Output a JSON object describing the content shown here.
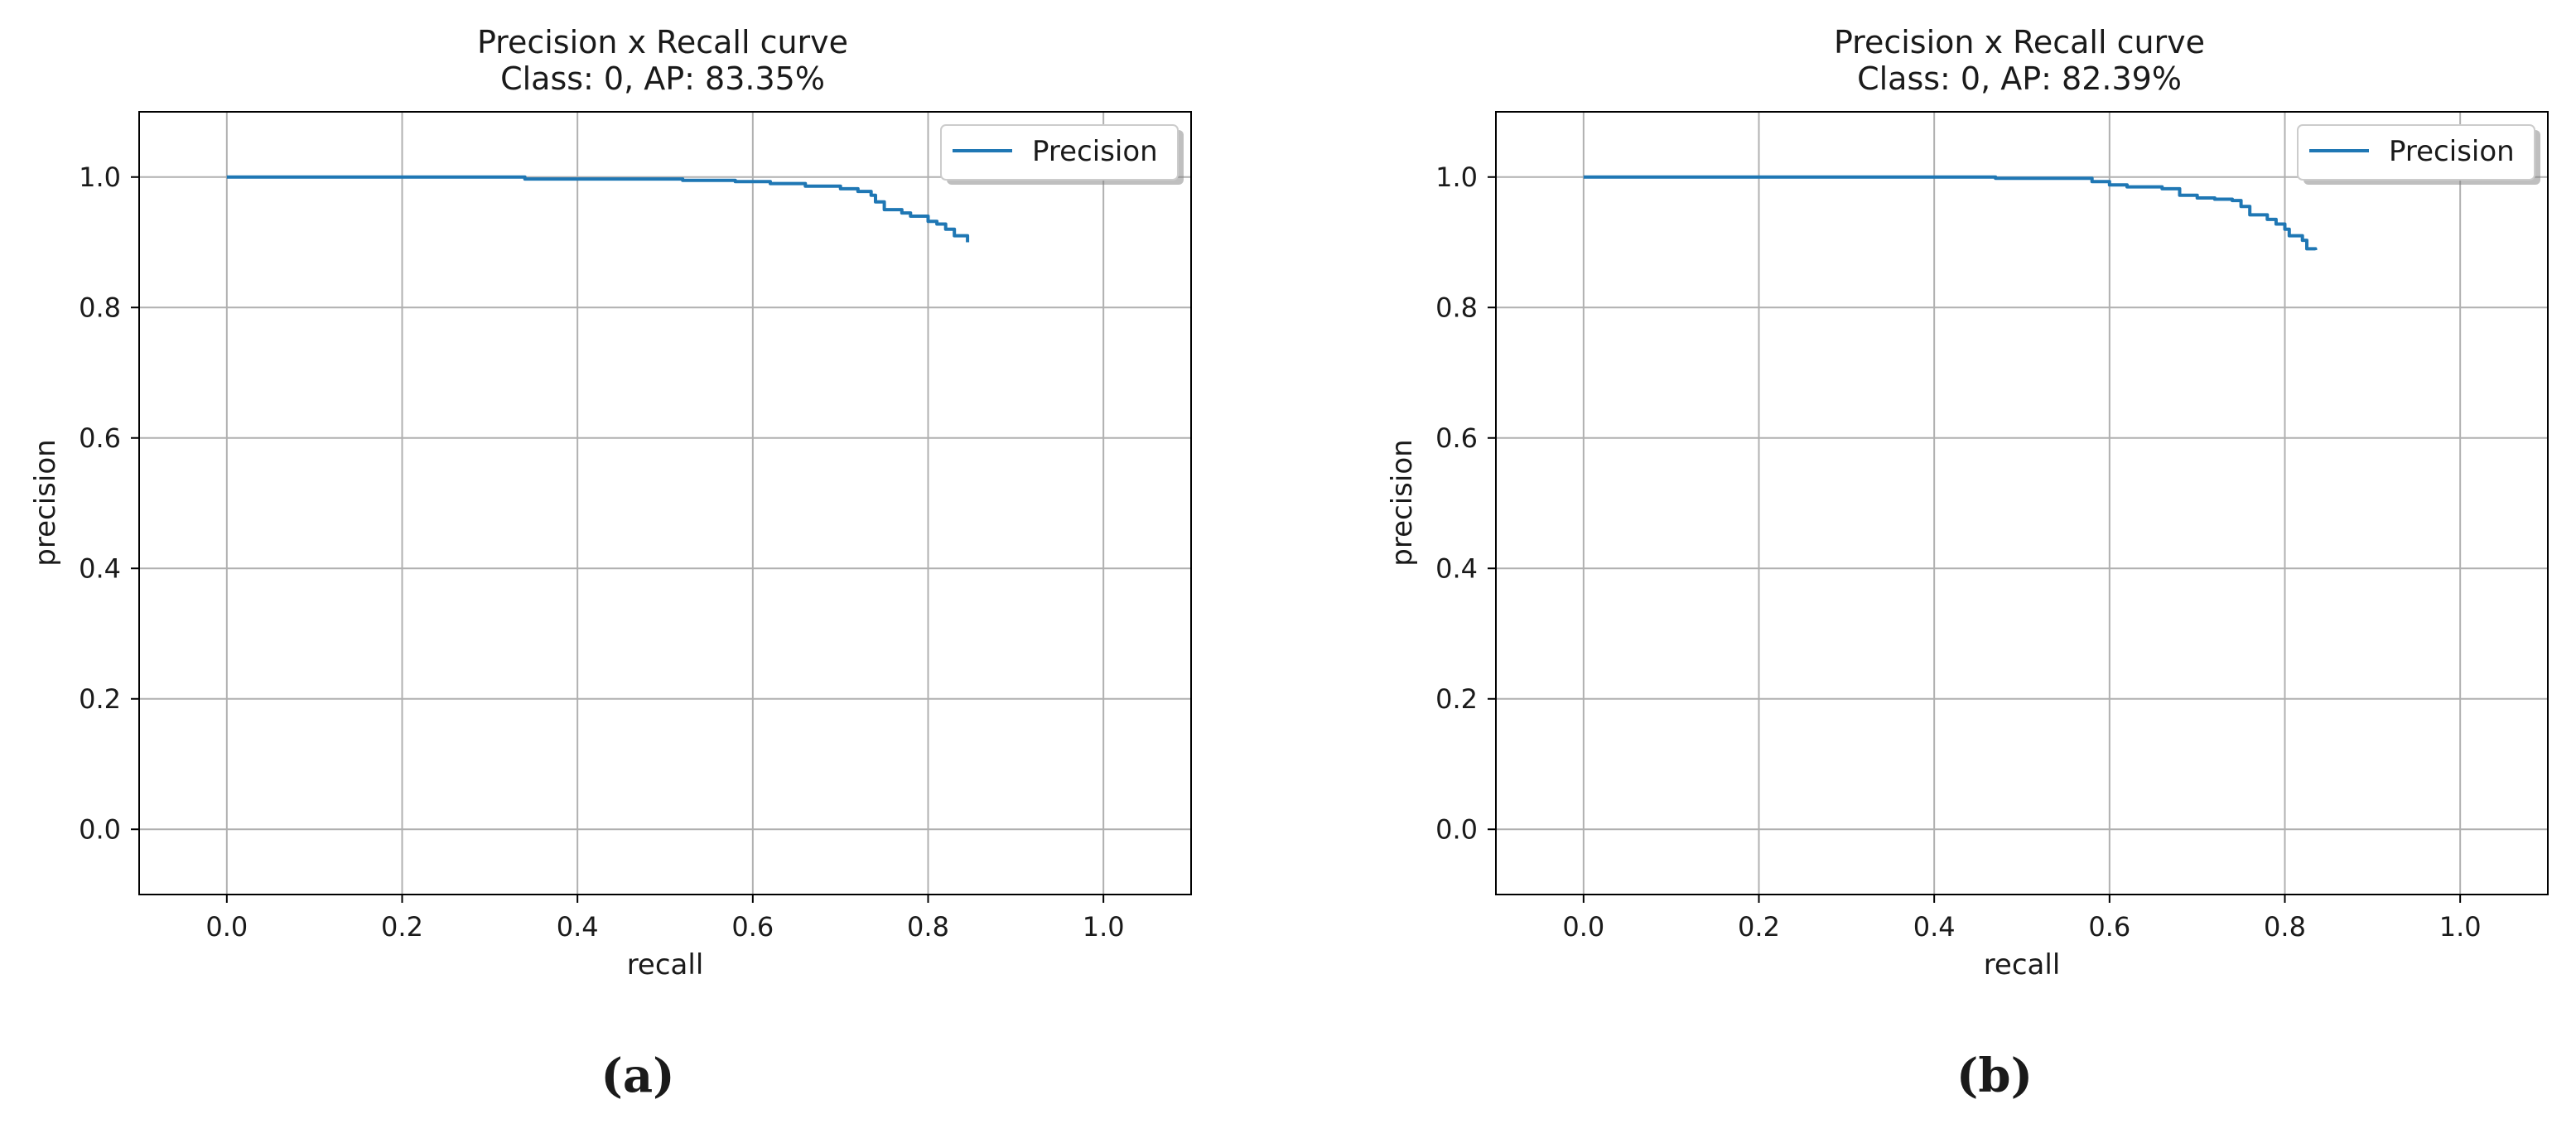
{
  "chart_data": [
    {
      "type": "line",
      "title": "Precision x Recall curve",
      "subtitle": "Class: 0, AP: 83.35%",
      "xlabel": "recall",
      "ylabel": "precision",
      "xlim": [
        -0.1,
        1.1
      ],
      "ylim": [
        -0.1,
        1.1
      ],
      "xticks": [
        "0.0",
        "0.2",
        "0.4",
        "0.6",
        "0.8",
        "1.0"
      ],
      "yticks": [
        "0.0",
        "0.2",
        "0.4",
        "0.6",
        "0.8",
        "1.0"
      ],
      "grid": true,
      "legend_position": "top-right",
      "series": [
        {
          "name": "Precision",
          "color": "#1f77b4",
          "x": [
            0.0,
            0.335,
            0.34,
            0.5,
            0.52,
            0.58,
            0.62,
            0.66,
            0.7,
            0.72,
            0.735,
            0.74,
            0.75,
            0.77,
            0.78,
            0.8,
            0.81,
            0.82,
            0.83,
            0.845
          ],
          "y": [
            1.0,
            1.0,
            0.997,
            0.997,
            0.995,
            0.993,
            0.99,
            0.986,
            0.982,
            0.978,
            0.972,
            0.962,
            0.95,
            0.945,
            0.94,
            0.932,
            0.928,
            0.92,
            0.91,
            0.9
          ]
        }
      ],
      "caption": "(a)"
    },
    {
      "type": "line",
      "title": "Precision x Recall curve",
      "subtitle": "Class: 0, AP: 82.39%",
      "xlabel": "recall",
      "ylabel": "precision",
      "xlim": [
        -0.1,
        1.1
      ],
      "ylim": [
        -0.1,
        1.1
      ],
      "xticks": [
        "0.0",
        "0.2",
        "0.4",
        "0.6",
        "0.8",
        "1.0"
      ],
      "yticks": [
        "0.0",
        "0.2",
        "0.4",
        "0.6",
        "0.8",
        "1.0"
      ],
      "grid": true,
      "legend_position": "top-right",
      "series": [
        {
          "name": "Precision",
          "color": "#1f77b4",
          "x": [
            0.0,
            0.46,
            0.47,
            0.56,
            0.58,
            0.6,
            0.62,
            0.66,
            0.68,
            0.7,
            0.72,
            0.74,
            0.75,
            0.76,
            0.78,
            0.79,
            0.8,
            0.805,
            0.82,
            0.825,
            0.835
          ],
          "y": [
            1.0,
            1.0,
            0.998,
            0.998,
            0.993,
            0.988,
            0.985,
            0.982,
            0.972,
            0.968,
            0.966,
            0.964,
            0.955,
            0.942,
            0.935,
            0.928,
            0.92,
            0.91,
            0.903,
            0.89,
            0.888
          ]
        }
      ],
      "caption": "(b)"
    }
  ]
}
